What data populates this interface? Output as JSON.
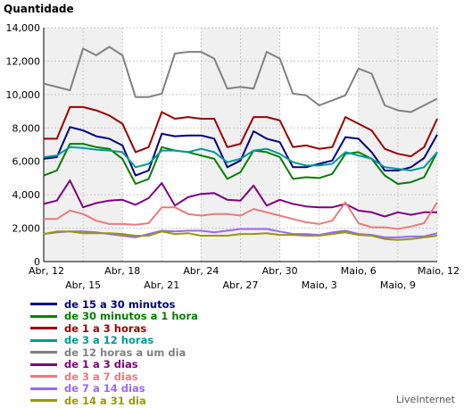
{
  "chart_data": {
    "type": "line",
    "ylabel": "Quantidade",
    "ylim": [
      0,
      14000
    ],
    "yticks": [
      "0",
      "2,000",
      "4,000",
      "6,000",
      "8,000",
      "10,000",
      "12,000",
      "14,000"
    ],
    "x": [
      "Abr, 12",
      "Abr, 13",
      "Abr, 14",
      "Abr, 15",
      "Abr, 16",
      "Abr, 17",
      "Abr, 18",
      "Abr, 19",
      "Abr, 20",
      "Abr, 21",
      "Abr, 22",
      "Abr, 23",
      "Abr, 24",
      "Abr, 25",
      "Abr, 26",
      "Abr, 27",
      "Abr, 28",
      "Abr, 29",
      "Abr, 30",
      "Maio, 1",
      "Maio, 2",
      "Maio, 3",
      "Maio, 4",
      "Maio, 5",
      "Maio, 6",
      "Maio, 7",
      "Maio, 8",
      "Maio, 9",
      "Maio, 10",
      "Maio, 11",
      "Maio, 12"
    ],
    "xticks_top": [
      "Abr, 12",
      "Abr, 18",
      "Abr, 24",
      "Abr, 30",
      "Maio, 6",
      "Maio, 12"
    ],
    "xticks_bottom": [
      "Abr, 15",
      "Abr, 21",
      "Abr, 27",
      "Maio, 3",
      "Maio, 9"
    ],
    "grid": true,
    "shaded_bands": [
      [
        0,
        6
      ],
      [
        12,
        18
      ],
      [
        24,
        30
      ]
    ],
    "series": [
      {
        "name": "de 15 a 30 minutos",
        "color": "#000080",
        "values": [
          6150,
          6250,
          8050,
          7850,
          7500,
          7350,
          6950,
          5150,
          5450,
          7650,
          7500,
          7550,
          7550,
          7350,
          5650,
          6050,
          7800,
          7350,
          7150,
          5650,
          5650,
          5850,
          6050,
          7450,
          7350,
          6550,
          5450,
          5450,
          5650,
          6200,
          7600
        ]
      },
      {
        "name": "de 30 minutos a 1 hora",
        "color": "#008000",
        "values": [
          5150,
          5450,
          7050,
          7050,
          6850,
          6750,
          6150,
          4650,
          4950,
          6850,
          6650,
          6550,
          6350,
          6150,
          4950,
          5350,
          6650,
          6550,
          6250,
          4950,
          5050,
          5000,
          5250,
          6450,
          6550,
          6150,
          5150,
          4650,
          4750,
          5050,
          6550
        ]
      },
      {
        "name": "de 1 a 3 horas",
        "color": "#990000",
        "values": [
          7350,
          7350,
          9250,
          9250,
          9050,
          8750,
          8250,
          6550,
          6850,
          8950,
          8550,
          8650,
          8550,
          8550,
          6850,
          7050,
          8650,
          8650,
          8450,
          6850,
          6950,
          6750,
          6850,
          8650,
          8250,
          7850,
          6750,
          6450,
          6300,
          6850,
          8550
        ]
      },
      {
        "name": "de 3 a 12 horas",
        "color": "#009999",
        "values": [
          6250,
          6350,
          6850,
          6800,
          6700,
          6650,
          6550,
          5650,
          5850,
          6650,
          6650,
          6550,
          6750,
          6550,
          5950,
          6150,
          6650,
          6750,
          6450,
          5950,
          5750,
          5750,
          5850,
          6550,
          6350,
          6150,
          5650,
          5550,
          5450,
          5650,
          6550
        ]
      },
      {
        "name": "de 12 horas a um dia",
        "color": "#808080",
        "values": [
          10650,
          10450,
          10250,
          12750,
          12350,
          12850,
          12350,
          9850,
          9850,
          10050,
          12450,
          12550,
          12550,
          12150,
          10350,
          10450,
          10350,
          12550,
          12150,
          10050,
          9950,
          9350,
          9650,
          9950,
          11550,
          11250,
          9350,
          9050,
          8950,
          9350,
          9750
        ]
      },
      {
        "name": "de 1 a 3 dias",
        "color": "#800080",
        "values": [
          3450,
          3650,
          4850,
          3250,
          3500,
          3650,
          3700,
          3400,
          3800,
          4700,
          3350,
          3850,
          4050,
          4100,
          3700,
          3650,
          4550,
          3350,
          3700,
          3450,
          3300,
          3250,
          3250,
          3450,
          3050,
          2950,
          2700,
          2950,
          2800,
          2950,
          2950
        ]
      },
      {
        "name": "de 3 a 7 dias",
        "color": "#e77c7c",
        "values": [
          2550,
          2550,
          3050,
          2850,
          2450,
          2250,
          2250,
          2200,
          2300,
          3250,
          3250,
          2850,
          2750,
          2850,
          2850,
          2750,
          3150,
          2950,
          2750,
          2550,
          2350,
          2250,
          2450,
          3550,
          2300,
          2050,
          2050,
          1950,
          2100,
          2300,
          3550
        ]
      },
      {
        "name": "de 7 a 14 dias",
        "color": "#9966ff",
        "values": [
          1650,
          1750,
          1800,
          1800,
          1750,
          1650,
          1550,
          1450,
          1650,
          1850,
          1800,
          1850,
          1850,
          1750,
          1850,
          1950,
          1950,
          1950,
          1800,
          1650,
          1650,
          1600,
          1750,
          1850,
          1650,
          1600,
          1450,
          1450,
          1500,
          1500,
          1700
        ]
      },
      {
        "name": "de 14 a 31 dia",
        "color": "#999900",
        "values": [
          1650,
          1800,
          1800,
          1700,
          1700,
          1700,
          1650,
          1550,
          1550,
          1800,
          1650,
          1700,
          1550,
          1550,
          1550,
          1650,
          1650,
          1700,
          1600,
          1600,
          1550,
          1550,
          1650,
          1750,
          1600,
          1550,
          1350,
          1300,
          1350,
          1450,
          1550
        ]
      }
    ]
  },
  "credit": "LiveInternet"
}
